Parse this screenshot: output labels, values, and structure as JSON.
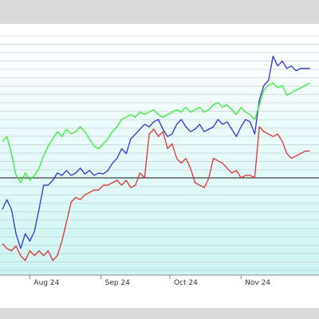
{
  "chart_data": {
    "type": "line",
    "x_ticks": [
      "Aug 24",
      "Sep 24",
      "Oct 24",
      "Nov 24"
    ],
    "baseline": {
      "value": 0
    },
    "ylim": [
      -20,
      30
    ],
    "grid": true,
    "series": [
      {
        "color": "#3333cc",
        "points": [
          [
            "2024-07-20",
            -6.5
          ],
          [
            "2024-07-22",
            -4.5
          ],
          [
            "2024-07-24",
            -6.5
          ],
          [
            "2024-07-26",
            -11.5
          ],
          [
            "2024-07-28",
            -14.5
          ],
          [
            "2024-07-30",
            -11.5
          ],
          [
            "2024-08-01",
            -13
          ],
          [
            "2024-08-03",
            -11
          ],
          [
            "2024-08-05",
            -6.5
          ],
          [
            "2024-08-07",
            -1.5
          ],
          [
            "2024-08-09",
            -1.5
          ],
          [
            "2024-08-11",
            -0.5
          ],
          [
            "2024-08-13",
            1
          ],
          [
            "2024-08-15",
            0.5
          ],
          [
            "2024-08-17",
            1.5
          ],
          [
            "2024-08-19",
            0.5
          ],
          [
            "2024-08-21",
            1
          ],
          [
            "2024-08-23",
            2
          ],
          [
            "2024-08-25",
            0.8
          ],
          [
            "2024-08-27",
            1.5
          ],
          [
            "2024-08-29",
            0.5
          ],
          [
            "2024-08-31",
            1
          ],
          [
            "2024-09-02",
            0.8
          ],
          [
            "2024-09-04",
            1.5
          ],
          [
            "2024-09-06",
            3
          ],
          [
            "2024-09-08",
            4
          ],
          [
            "2024-09-10",
            6
          ],
          [
            "2024-09-12",
            5
          ],
          [
            "2024-09-14",
            8
          ],
          [
            "2024-09-16",
            9
          ],
          [
            "2024-09-18",
            10
          ],
          [
            "2024-09-20",
            11
          ],
          [
            "2024-09-22",
            10.5
          ],
          [
            "2024-09-24",
            11.5
          ],
          [
            "2024-09-26",
            12
          ],
          [
            "2024-09-28",
            10
          ],
          [
            "2024-09-30",
            8.5
          ],
          [
            "2024-10-02",
            9
          ],
          [
            "2024-10-04",
            11
          ],
          [
            "2024-10-06",
            12
          ],
          [
            "2024-10-08",
            10.5
          ],
          [
            "2024-10-10",
            9.5
          ],
          [
            "2024-10-12",
            10
          ],
          [
            "2024-10-14",
            11
          ],
          [
            "2024-10-16",
            9.5
          ],
          [
            "2024-10-18",
            10
          ],
          [
            "2024-10-20",
            10.5
          ],
          [
            "2024-10-22",
            12
          ],
          [
            "2024-10-24",
            11
          ],
          [
            "2024-10-26",
            11.5
          ],
          [
            "2024-10-28",
            10
          ],
          [
            "2024-10-30",
            8.5
          ],
          [
            "2024-11-01",
            10.5
          ],
          [
            "2024-11-03",
            12
          ],
          [
            "2024-11-05",
            11.5
          ],
          [
            "2024-11-07",
            9
          ],
          [
            "2024-11-09",
            16
          ],
          [
            "2024-11-11",
            19
          ],
          [
            "2024-11-13",
            20
          ],
          [
            "2024-11-15",
            25
          ],
          [
            "2024-11-17",
            23
          ],
          [
            "2024-11-19",
            24
          ],
          [
            "2024-11-21",
            22.5
          ],
          [
            "2024-11-23",
            23
          ],
          [
            "2024-11-25",
            22
          ],
          [
            "2024-11-27",
            22.5
          ],
          [
            "2024-11-29",
            22.5
          ],
          [
            "2024-12-01",
            22.5
          ]
        ]
      },
      {
        "color": "#33ee33",
        "points": [
          [
            "2024-07-20",
            7.5
          ],
          [
            "2024-07-22",
            8.5
          ],
          [
            "2024-07-24",
            5
          ],
          [
            "2024-07-26",
            0.5
          ],
          [
            "2024-07-28",
            -1
          ],
          [
            "2024-07-30",
            1
          ],
          [
            "2024-08-01",
            -0.5
          ],
          [
            "2024-08-03",
            0.5
          ],
          [
            "2024-08-05",
            2
          ],
          [
            "2024-08-07",
            4.5
          ],
          [
            "2024-08-09",
            6.5
          ],
          [
            "2024-08-11",
            8
          ],
          [
            "2024-08-13",
            9.5
          ],
          [
            "2024-08-15",
            8.5
          ],
          [
            "2024-08-17",
            10
          ],
          [
            "2024-08-19",
            9
          ],
          [
            "2024-08-21",
            9.5
          ],
          [
            "2024-08-23",
            10.5
          ],
          [
            "2024-08-25",
            9.5
          ],
          [
            "2024-08-27",
            8
          ],
          [
            "2024-08-29",
            6.5
          ],
          [
            "2024-08-31",
            6
          ],
          [
            "2024-09-02",
            7
          ],
          [
            "2024-09-04",
            8
          ],
          [
            "2024-09-06",
            9.5
          ],
          [
            "2024-09-08",
            10.5
          ],
          [
            "2024-09-10",
            12
          ],
          [
            "2024-09-12",
            12.5
          ],
          [
            "2024-09-14",
            13
          ],
          [
            "2024-09-16",
            12.5
          ],
          [
            "2024-09-18",
            13.5
          ],
          [
            "2024-09-20",
            13
          ],
          [
            "2024-09-22",
            13.5
          ],
          [
            "2024-09-24",
            14
          ],
          [
            "2024-09-26",
            13
          ],
          [
            "2024-09-28",
            12.5
          ],
          [
            "2024-09-30",
            13
          ],
          [
            "2024-10-02",
            13.5
          ],
          [
            "2024-10-04",
            14
          ],
          [
            "2024-10-06",
            13.5
          ],
          [
            "2024-10-08",
            14.5
          ],
          [
            "2024-10-10",
            13.5
          ],
          [
            "2024-10-12",
            14
          ],
          [
            "2024-10-14",
            14.5
          ],
          [
            "2024-10-16",
            13.5
          ],
          [
            "2024-10-18",
            14
          ],
          [
            "2024-10-20",
            15
          ],
          [
            "2024-10-22",
            15.5
          ],
          [
            "2024-10-24",
            14.5
          ],
          [
            "2024-10-26",
            15
          ],
          [
            "2024-10-28",
            14
          ],
          [
            "2024-10-30",
            13
          ],
          [
            "2024-11-01",
            14.5
          ],
          [
            "2024-11-03",
            13.5
          ],
          [
            "2024-11-05",
            13
          ],
          [
            "2024-11-07",
            12
          ],
          [
            "2024-11-09",
            15
          ],
          [
            "2024-11-11",
            18
          ],
          [
            "2024-11-13",
            19
          ],
          [
            "2024-11-15",
            19.5
          ],
          [
            "2024-11-17",
            18.5
          ],
          [
            "2024-11-19",
            19
          ],
          [
            "2024-11-21",
            17
          ],
          [
            "2024-11-23",
            17.5
          ],
          [
            "2024-11-25",
            18
          ],
          [
            "2024-11-27",
            18.5
          ],
          [
            "2024-11-29",
            19
          ],
          [
            "2024-12-01",
            19.5
          ]
        ]
      },
      {
        "color": "#dd3333",
        "points": [
          [
            "2024-07-20",
            -13.5
          ],
          [
            "2024-07-22",
            -14.5
          ],
          [
            "2024-07-24",
            -15
          ],
          [
            "2024-07-26",
            -14
          ],
          [
            "2024-07-28",
            -16
          ],
          [
            "2024-07-30",
            -17
          ],
          [
            "2024-08-01",
            -15
          ],
          [
            "2024-08-03",
            -16
          ],
          [
            "2024-08-05",
            -15
          ],
          [
            "2024-08-07",
            -16
          ],
          [
            "2024-08-09",
            -15
          ],
          [
            "2024-08-11",
            -17
          ],
          [
            "2024-08-13",
            -16
          ],
          [
            "2024-08-15",
            -13
          ],
          [
            "2024-08-17",
            -9
          ],
          [
            "2024-08-19",
            -5
          ],
          [
            "2024-08-21",
            -4
          ],
          [
            "2024-08-23",
            -4.5
          ],
          [
            "2024-08-25",
            -3.5
          ],
          [
            "2024-08-27",
            -3
          ],
          [
            "2024-08-29",
            -2.5
          ],
          [
            "2024-08-31",
            -2.5
          ],
          [
            "2024-09-02",
            -1.5
          ],
          [
            "2024-09-04",
            -1.5
          ],
          [
            "2024-09-06",
            -1
          ],
          [
            "2024-09-08",
            -0.5
          ],
          [
            "2024-09-10",
            -1.5
          ],
          [
            "2024-09-12",
            -0.5
          ],
          [
            "2024-09-14",
            -2
          ],
          [
            "2024-09-16",
            -1.5
          ],
          [
            "2024-09-18",
            1
          ],
          [
            "2024-09-20",
            0
          ],
          [
            "2024-09-22",
            9
          ],
          [
            "2024-09-24",
            10
          ],
          [
            "2024-09-26",
            8.5
          ],
          [
            "2024-09-28",
            9.5
          ],
          [
            "2024-09-30",
            6
          ],
          [
            "2024-10-02",
            7
          ],
          [
            "2024-10-04",
            4
          ],
          [
            "2024-10-06",
            3
          ],
          [
            "2024-10-08",
            4
          ],
          [
            "2024-10-10",
            2
          ],
          [
            "2024-10-12",
            -1
          ],
          [
            "2024-10-14",
            -1.5
          ],
          [
            "2024-10-16",
            -2
          ],
          [
            "2024-10-18",
            0
          ],
          [
            "2024-10-20",
            4
          ],
          [
            "2024-10-22",
            3.5
          ],
          [
            "2024-10-24",
            3
          ],
          [
            "2024-10-26",
            2
          ],
          [
            "2024-10-28",
            1
          ],
          [
            "2024-10-30",
            1.5
          ],
          [
            "2024-11-01",
            0
          ],
          [
            "2024-11-03",
            0.5
          ],
          [
            "2024-11-05",
            0.5
          ],
          [
            "2024-11-07",
            0
          ],
          [
            "2024-11-09",
            10.5
          ],
          [
            "2024-11-11",
            9.5
          ],
          [
            "2024-11-13",
            9
          ],
          [
            "2024-11-15",
            8.5
          ],
          [
            "2024-11-17",
            9
          ],
          [
            "2024-11-19",
            7.5
          ],
          [
            "2024-11-21",
            5
          ],
          [
            "2024-11-23",
            4
          ],
          [
            "2024-11-25",
            4.5
          ],
          [
            "2024-11-27",
            5
          ],
          [
            "2024-11-29",
            5.5
          ],
          [
            "2024-12-01",
            5.5
          ]
        ]
      }
    ]
  }
}
